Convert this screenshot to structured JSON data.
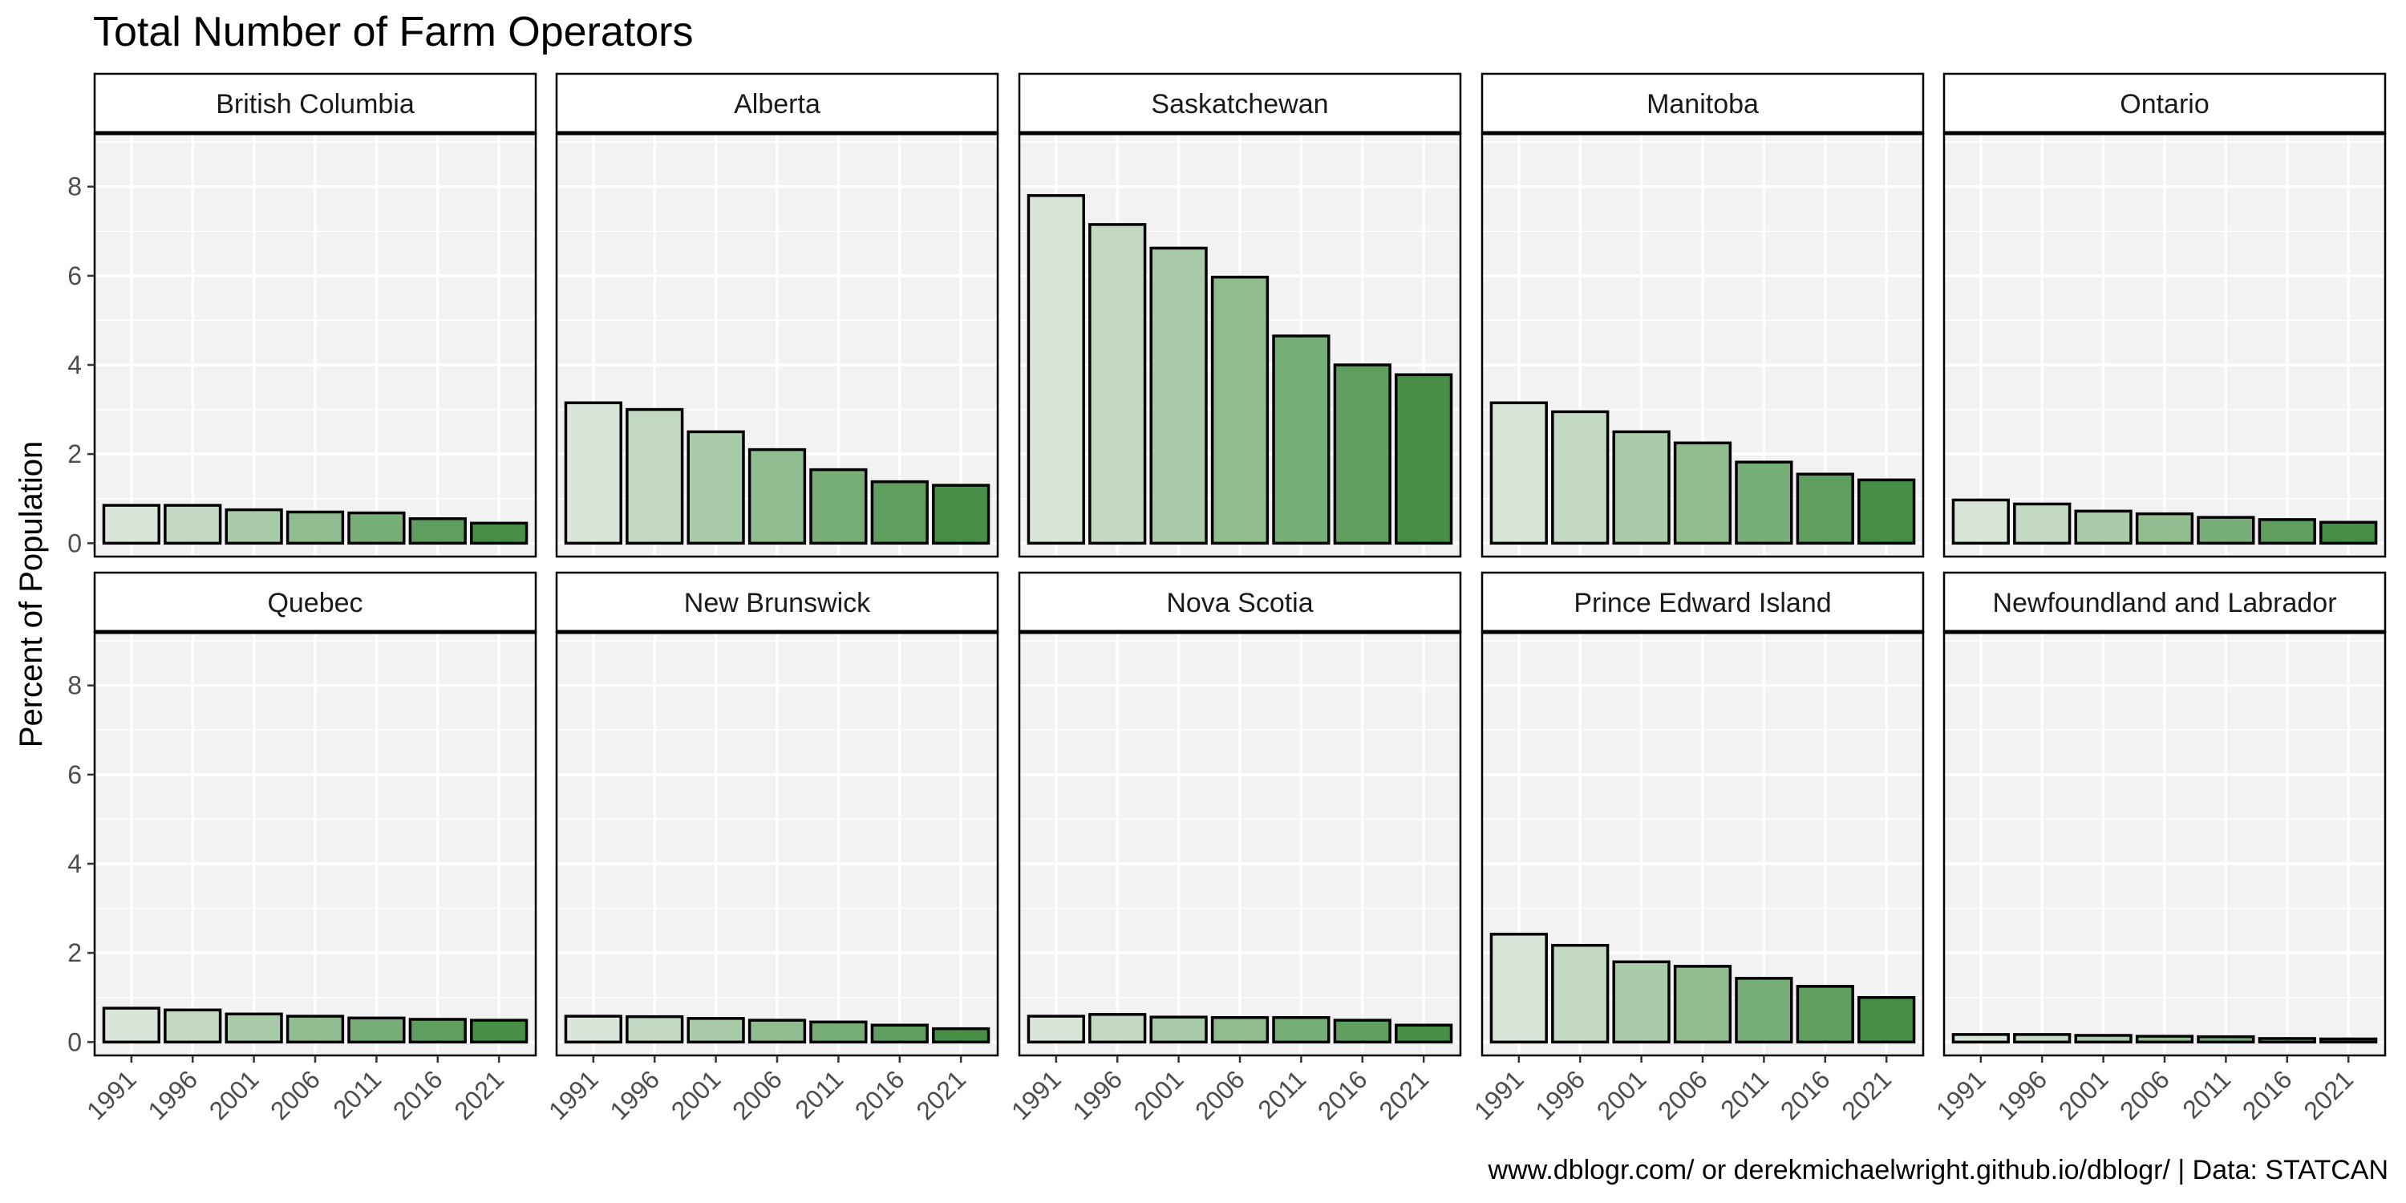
{
  "chart_data": {
    "type": "bar",
    "title": "Total Number of Farm Operators",
    "ylabel": "Percent of Population",
    "xlabel": "",
    "caption": "www.dblogr.com/ or derekmichaelwright.github.io/dblogr/ | Data: STATCAN",
    "categories": [
      "1991",
      "1996",
      "2001",
      "2006",
      "2011",
      "2016",
      "2021"
    ],
    "ylim": [
      -0.3,
      9.2
    ],
    "y_ticks": [
      0,
      2,
      4,
      6,
      8
    ],
    "grid": true,
    "bar_colors": [
      "#d9e5d9",
      "#c3d9c3",
      "#a9cba9",
      "#90bc90",
      "#77ad77",
      "#5e9e5e",
      "#478f47"
    ],
    "panel_background": "#f2f2f2",
    "panels": [
      {
        "name": "British Columbia",
        "values": [
          0.85,
          0.85,
          0.75,
          0.7,
          0.68,
          0.55,
          0.45
        ]
      },
      {
        "name": "Alberta",
        "values": [
          3.15,
          3.0,
          2.5,
          2.1,
          1.65,
          1.38,
          1.3
        ]
      },
      {
        "name": "Saskatchewan",
        "values": [
          7.8,
          7.15,
          6.62,
          5.97,
          4.65,
          4.0,
          3.78
        ]
      },
      {
        "name": "Manitoba",
        "values": [
          3.15,
          2.95,
          2.5,
          2.25,
          1.82,
          1.55,
          1.42
        ]
      },
      {
        "name": "Ontario",
        "values": [
          0.97,
          0.88,
          0.72,
          0.66,
          0.58,
          0.53,
          0.47
        ]
      },
      {
        "name": "Quebec",
        "values": [
          0.76,
          0.72,
          0.63,
          0.58,
          0.54,
          0.51,
          0.49
        ]
      },
      {
        "name": "New Brunswick",
        "values": [
          0.58,
          0.57,
          0.53,
          0.49,
          0.45,
          0.38,
          0.3
        ]
      },
      {
        "name": "Nova Scotia",
        "values": [
          0.58,
          0.62,
          0.56,
          0.55,
          0.55,
          0.49,
          0.38
        ]
      },
      {
        "name": "Prince Edward Island",
        "values": [
          2.42,
          2.17,
          1.8,
          1.7,
          1.43,
          1.25,
          1.0
        ]
      },
      {
        "name": "Newfoundland and Labrador",
        "values": [
          0.17,
          0.17,
          0.15,
          0.13,
          0.12,
          0.08,
          0.07
        ]
      }
    ]
  }
}
